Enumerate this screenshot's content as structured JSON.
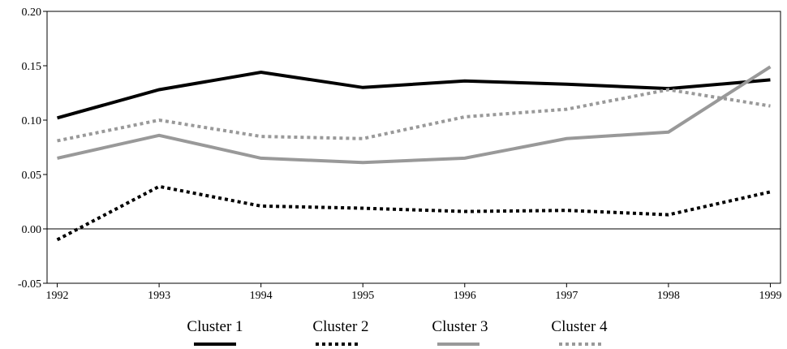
{
  "chart_data": {
    "type": "line",
    "x": [
      1992,
      1993,
      1994,
      1995,
      1996,
      1997,
      1998,
      1999
    ],
    "xlim": [
      1991.9,
      1999.1
    ],
    "xticks": [
      1992,
      1993,
      1994,
      1995,
      1996,
      1997,
      1998,
      1999
    ],
    "ylim": [
      -0.05,
      0.2
    ],
    "yticks": [
      {
        "value": 0.2,
        "label": "0.20"
      },
      0.15,
      {
        "value": 0.1,
        "label": "0.10"
      },
      0.05,
      {
        "value": 0,
        "label": "0.00"
      },
      -0.05
    ],
    "legend": "bottom",
    "series": [
      {
        "name": "Cluster 1",
        "color": "#000000",
        "style": "solid",
        "values": [
          0.102,
          0.128,
          0.144,
          0.13,
          0.136,
          0.133,
          0.129,
          0.137
        ]
      },
      {
        "name": "Cluster 2",
        "color": "#000000",
        "style": "dotted",
        "values": [
          -0.01,
          0.039,
          0.021,
          0.019,
          0.016,
          0.017,
          0.013,
          0.034
        ]
      },
      {
        "name": "Cluster 3",
        "color": "#999999",
        "style": "solid",
        "values": [
          0.065,
          0.086,
          0.065,
          0.061,
          0.065,
          0.083,
          0.089,
          0.149
        ]
      },
      {
        "name": "Cluster 4",
        "color": "#999999",
        "style": "dotted",
        "values": [
          0.081,
          0.1,
          0.085,
          0.083,
          0.103,
          0.11,
          0.128,
          0.113
        ]
      }
    ]
  }
}
